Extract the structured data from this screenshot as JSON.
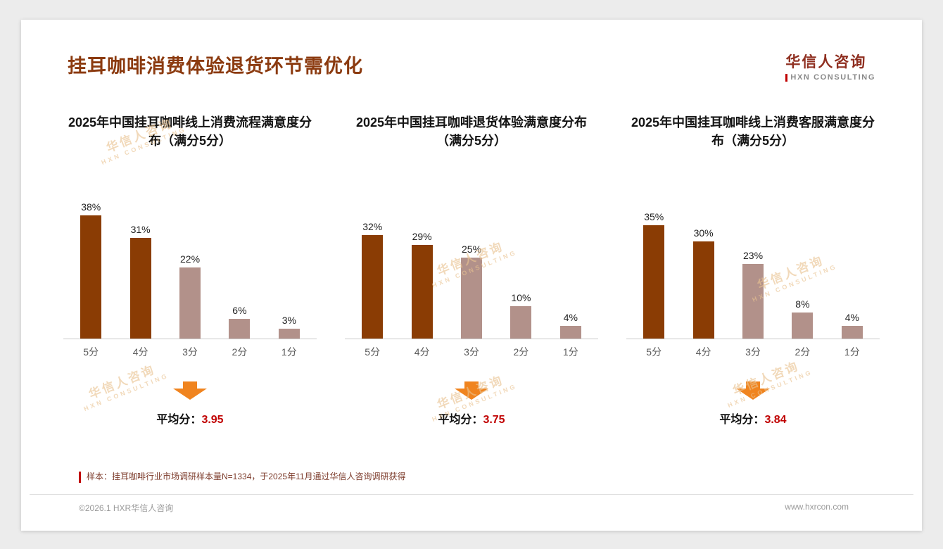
{
  "page": {
    "title": "挂耳咖啡消费体验退货环节需优化",
    "logo": {
      "cn": "华信人咨询",
      "en": "HXN CONSULTING"
    },
    "watermark": {
      "line1": "华信人咨询",
      "line2": "HXN CONSULTING"
    },
    "footnote": "样本：挂耳咖啡行业市场调研样本量N=1334，于2025年11月通过华信人咨询调研获得",
    "footer": {
      "copyright": "©2026.1 HXR华信人咨询",
      "website": "www.hxrcon.com"
    }
  },
  "colors": {
    "title_brown": "#8b3a0f",
    "bar_dark": "#8a3c04",
    "bar_light": "#b2918a",
    "arrow_orange": "#f0841f",
    "accent_red": "#c00000",
    "watermark": "#eac391"
  },
  "chart_data": [
    {
      "type": "bar",
      "title": "2025年中国挂耳咖啡线上消费流程满意度分布（满分5分）",
      "categories": [
        "5分",
        "4分",
        "3分",
        "2分",
        "1分"
      ],
      "values": [
        38,
        31,
        22,
        6,
        3
      ],
      "unit": "%",
      "bar_colors": [
        "#8a3c04",
        "#8a3c04",
        "#b2918a",
        "#b2918a",
        "#b2918a"
      ],
      "average_label": "平均分：",
      "average_value": "3.95",
      "ylim": [
        0,
        40
      ],
      "grid": false,
      "legend": false
    },
    {
      "type": "bar",
      "title": "2025年中国挂耳咖啡退货体验满意度分布（满分5分）",
      "categories": [
        "5分",
        "4分",
        "3分",
        "2分",
        "1分"
      ],
      "values": [
        32,
        29,
        25,
        10,
        4
      ],
      "unit": "%",
      "bar_colors": [
        "#8a3c04",
        "#8a3c04",
        "#b2918a",
        "#b2918a",
        "#b2918a"
      ],
      "average_label": "平均分：",
      "average_value": "3.75",
      "ylim": [
        0,
        40
      ],
      "grid": false,
      "legend": false
    },
    {
      "type": "bar",
      "title": "2025年中国挂耳咖啡线上消费客服满意度分布（满分5分）",
      "categories": [
        "5分",
        "4分",
        "3分",
        "2分",
        "1分"
      ],
      "values": [
        35,
        30,
        23,
        8,
        4
      ],
      "unit": "%",
      "bar_colors": [
        "#8a3c04",
        "#8a3c04",
        "#b2918a",
        "#b2918a",
        "#b2918a"
      ],
      "average_label": "平均分：",
      "average_value": "3.84",
      "ylim": [
        0,
        40
      ],
      "grid": false,
      "legend": false
    }
  ]
}
